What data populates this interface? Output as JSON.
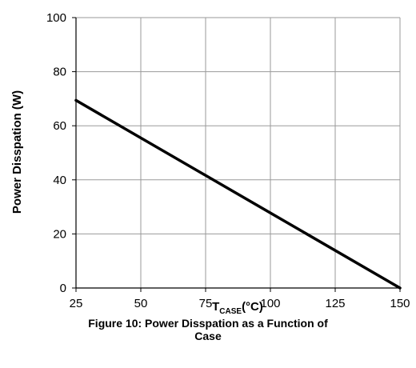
{
  "chart_data": {
    "type": "line",
    "title": "Figure 10: Power Disspation as a Function of Case",
    "xlabel_main": "T",
    "xlabel_sub": "CASE",
    "xlabel_unit": "(°C)",
    "ylabel": "Power Disspation (W)",
    "xlim": [
      25,
      150
    ],
    "ylim": [
      0,
      100
    ],
    "xticks": [
      "25",
      "50",
      "75",
      "100",
      "125",
      "150"
    ],
    "yticks": [
      "0",
      "20",
      "40",
      "60",
      "80",
      "100"
    ],
    "grid": true,
    "legend": "none",
    "series": [
      {
        "x": [
          25,
          150
        ],
        "y": [
          69.4,
          0
        ],
        "color": "#000000"
      }
    ]
  },
  "caption": {
    "line1": "Figure 10: Power Disspation as a Function of",
    "line2": "Case"
  }
}
